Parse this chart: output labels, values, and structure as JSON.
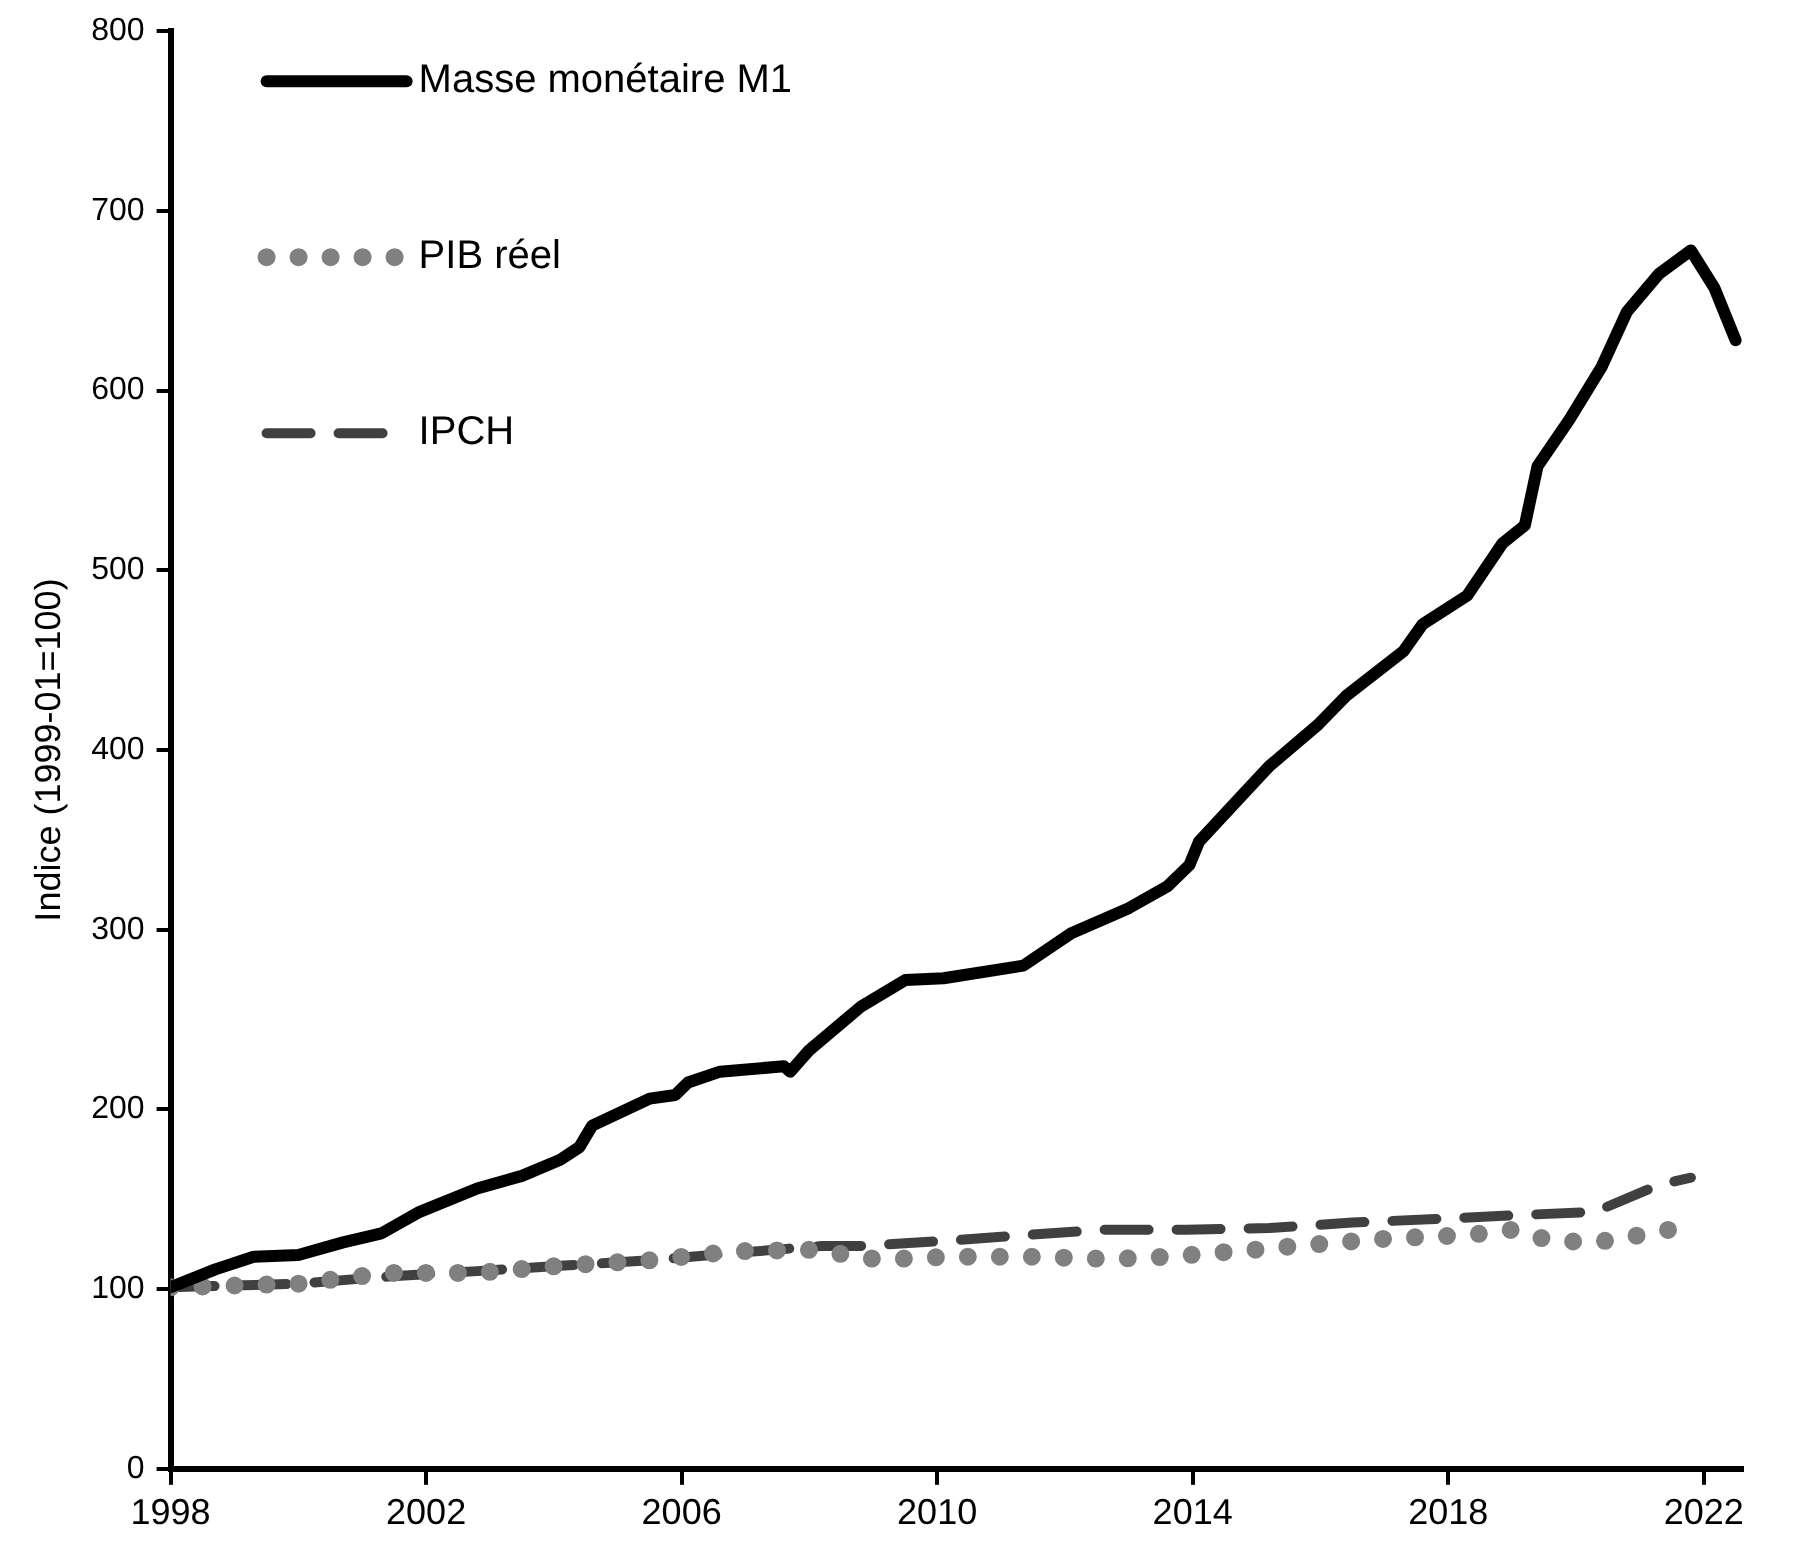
{
  "chart_data": {
    "type": "line",
    "ylabel": "Indice (1999-01=100)",
    "xlim": [
      1998,
      2022.6
    ],
    "xticks": [
      1998,
      2002,
      2006,
      2010,
      2014,
      2018,
      2022
    ],
    "ylim": [
      0,
      800
    ],
    "yticks": [
      0,
      100,
      200,
      300,
      400,
      500,
      600,
      700,
      800
    ],
    "grid": false,
    "legend": "top left",
    "marker": "none",
    "series": [
      {
        "name": "Masse monétaire M1",
        "color": "#000000",
        "line_style": "solid",
        "x": [
          1998.0,
          1998.7,
          1999.3,
          2000.0,
          2000.7,
          2001.3,
          2001.9,
          2002.8,
          2003.5,
          2004.1,
          2004.4,
          2004.6,
          2005.5,
          2005.9,
          2006.1,
          2006.6,
          2007.6,
          2007.7,
          2008.0,
          2008.8,
          2009.5,
          2010.1,
          2011.35,
          2012.1,
          2013.0,
          2013.6,
          2013.95,
          2014.1,
          2014.7,
          2015.2,
          2015.96,
          2016.4,
          2017.3,
          2017.6,
          2018.3,
          2018.85,
          2019.2,
          2019.4,
          2019.9,
          2020.4,
          2020.8,
          2021.3,
          2021.8,
          2022.17,
          2022.5
        ],
        "values": [
          101,
          111,
          118,
          119,
          126,
          131,
          143,
          156,
          163,
          172,
          179,
          191,
          206,
          208,
          215,
          221,
          224,
          221,
          233,
          257,
          272,
          273,
          280,
          298,
          312,
          324,
          336,
          349,
          372,
          391,
          414,
          430,
          455,
          470,
          486,
          515,
          525,
          558,
          584,
          613,
          644,
          665,
          678,
          657,
          628
        ]
      },
      {
        "name": "PIB réel",
        "color": "#808080",
        "line_style": "dotted",
        "x": [
          1998.0,
          2000.0,
          2001.4,
          2002.8,
          2004.1,
          2005.5,
          2006.8,
          2008.2,
          2008.8,
          2009.5,
          2010.2,
          2010.9,
          2011.6,
          2012.3,
          2012.9,
          2013.6,
          2014.3,
          2015.0,
          2015.6,
          2016.3,
          2017.0,
          2017.6,
          2018.3,
          2019.0,
          2019.6,
          2020.3,
          2021.0,
          2021.6
        ],
        "values": [
          101,
          103,
          109,
          109,
          113,
          116,
          121,
          122,
          117,
          117,
          118,
          118,
          118,
          117,
          117,
          118,
          120,
          122,
          124,
          126,
          128,
          129,
          130,
          133,
          127,
          126,
          130,
          134
        ]
      },
      {
        "name": "IPCH",
        "color": "#404040",
        "line_style": "dashed",
        "x": [
          1998.0,
          2000.0,
          2001.4,
          2002.8,
          2004.1,
          2005.5,
          2006.8,
          2008.2,
          2008.8,
          2010.2,
          2011.35,
          2012.6,
          2013.9,
          2015.2,
          2016.5,
          2017.8,
          2019.0,
          2020.3,
          2021.3,
          2021.8
        ],
        "values": [
          101,
          103,
          107,
          110,
          113,
          116,
          120,
          124,
          124,
          127,
          130,
          133,
          133,
          134,
          137,
          139,
          141,
          143,
          158,
          162
        ]
      }
    ]
  }
}
